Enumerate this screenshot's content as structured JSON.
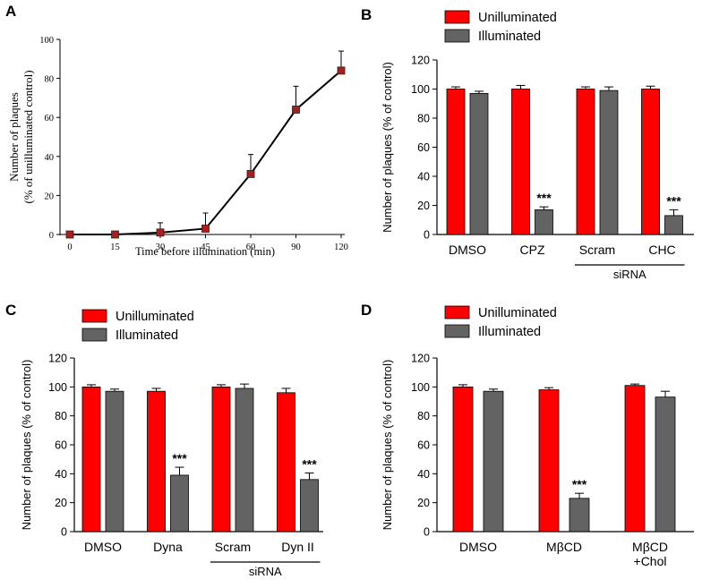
{
  "chart_data": [
    {
      "panel": "A",
      "type": "line",
      "title": "",
      "xlabel": "Time before illumination (min)",
      "ylabel_lines": [
        "Number of plaques",
        "(% of unilluminated control)"
      ],
      "x": [
        0,
        15,
        30,
        45,
        60,
        90,
        120
      ],
      "x_tick_labels": [
        "0",
        "15",
        "30",
        "45",
        "60",
        "90",
        "120"
      ],
      "y_ticks": [
        0,
        20,
        40,
        60,
        80,
        100
      ],
      "ylim": [
        0,
        100
      ],
      "series": [
        {
          "name": "plaques",
          "values": [
            0,
            0,
            1,
            3,
            31,
            64,
            84
          ],
          "errors": [
            0,
            0,
            5,
            8,
            10,
            12,
            10
          ]
        }
      ],
      "colors": {
        "marker": "#b01c1c",
        "line": "#000000"
      }
    },
    {
      "panel": "B",
      "type": "bar",
      "ylabel": "Number of plaques (% of control)",
      "ylim": [
        0,
        120
      ],
      "y_ticks": [
        0,
        20,
        40,
        60,
        80,
        100,
        120
      ],
      "categories": [
        "DMSO",
        "CPZ",
        "Scram",
        "CHC"
      ],
      "bracket": {
        "label": "siRNA",
        "from": 2,
        "to": 3
      },
      "series": [
        {
          "name": "Unilluminated",
          "values": [
            100,
            100,
            100,
            100
          ],
          "errors": [
            1.5,
            2.5,
            1.5,
            2
          ]
        },
        {
          "name": "Illuminated",
          "values": [
            97,
            17,
            99,
            13
          ],
          "errors": [
            1.5,
            2,
            2.5,
            4
          ]
        }
      ],
      "annotations": [
        {
          "category": 1,
          "series": 1,
          "text": "***"
        },
        {
          "category": 3,
          "series": 1,
          "text": "***"
        }
      ],
      "legend": "top",
      "colors": {
        "Unilluminated": "#ff0000",
        "Illuminated": "#636363"
      }
    },
    {
      "panel": "C",
      "type": "bar",
      "ylabel": "Number of plaques (% of control)",
      "ylim": [
        0,
        120
      ],
      "y_ticks": [
        0,
        20,
        40,
        60,
        80,
        100,
        120
      ],
      "categories": [
        "DMSO",
        "Dyna",
        "Scram",
        "Dyn II"
      ],
      "bracket": {
        "label": "siRNA",
        "from": 2,
        "to": 3
      },
      "series": [
        {
          "name": "Unilluminated",
          "values": [
            100,
            97,
            100,
            96
          ],
          "errors": [
            1.5,
            2,
            1.5,
            3
          ]
        },
        {
          "name": "Illuminated",
          "values": [
            97,
            39,
            99,
            36
          ],
          "errors": [
            1.5,
            5.5,
            3,
            4.5
          ]
        }
      ],
      "annotations": [
        {
          "category": 1,
          "series": 1,
          "text": "***"
        },
        {
          "category": 3,
          "series": 1,
          "text": "***"
        }
      ],
      "legend": "top",
      "colors": {
        "Unilluminated": "#ff0000",
        "Illuminated": "#636363"
      }
    },
    {
      "panel": "D",
      "type": "bar",
      "ylabel": "Number of plaques (% of control)",
      "ylim": [
        0,
        120
      ],
      "y_ticks": [
        0,
        20,
        40,
        60,
        80,
        100,
        120
      ],
      "categories": [
        "DMSO",
        "MβCD",
        "MβCD\n+Chol"
      ],
      "series": [
        {
          "name": "Unilluminated",
          "values": [
            100,
            98,
            101
          ],
          "errors": [
            1.5,
            1.5,
            1
          ]
        },
        {
          "name": "Illuminated",
          "values": [
            97,
            23,
            93
          ],
          "errors": [
            1.5,
            3.5,
            4
          ]
        }
      ],
      "annotations": [
        {
          "category": 1,
          "series": 1,
          "text": "***"
        }
      ],
      "legend": "top",
      "colors": {
        "Unilluminated": "#ff0000",
        "Illuminated": "#636363"
      }
    }
  ]
}
